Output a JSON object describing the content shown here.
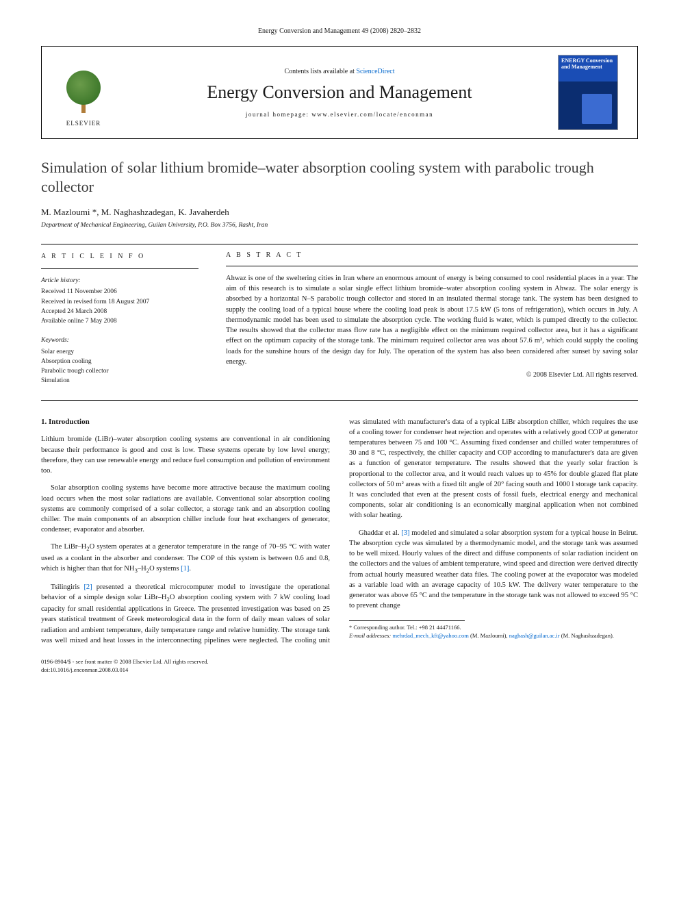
{
  "journal_ref": "Energy Conversion and Management 49 (2008) 2820–2832",
  "header": {
    "publisher": "ELSEVIER",
    "contents_prefix": "Contents lists available at ",
    "contents_link": "ScienceDirect",
    "journal_title": "Energy Conversion and Management",
    "homepage_prefix": "journal homepage: ",
    "homepage_url": "www.elsevier.com/locate/enconman",
    "cover_title": "ENERGY Conversion and Management"
  },
  "article": {
    "title": "Simulation of solar lithium bromide–water absorption cooling system with parabolic trough collector",
    "authors_html": "M. Mazloumi *, M. Naghashzadegan, K. Javaherdeh",
    "authors": [
      {
        "name": "M. Mazloumi",
        "corr": true
      },
      {
        "name": "M. Naghashzadegan",
        "corr": false
      },
      {
        "name": "K. Javaherdeh",
        "corr": false
      }
    ],
    "affiliation": "Department of Mechanical Engineering, Guilan University, P.O. Box 3756, Rasht, Iran"
  },
  "info": {
    "heading": "A R T I C L E   I N F O",
    "history_label": "Article history:",
    "history": [
      "Received 11 November 2006",
      "Received in revised form 18 August 2007",
      "Accepted 24 March 2008",
      "Available online 7 May 2008"
    ],
    "keywords_label": "Keywords:",
    "keywords": [
      "Solar energy",
      "Absorption cooling",
      "Parabolic trough collector",
      "Simulation"
    ]
  },
  "abstract": {
    "heading": "A B S T R A C T",
    "text": "Ahwaz is one of the sweltering cities in Iran where an enormous amount of energy is being consumed to cool residential places in a year. The aim of this research is to simulate a solar single effect lithium bromide–water absorption cooling system in Ahwaz. The solar energy is absorbed by a horizontal N–S parabolic trough collector and stored in an insulated thermal storage tank. The system has been designed to supply the cooling load of a typical house where the cooling load peak is about 17.5 kW (5 tons of refrigeration), which occurs in July. A thermodynamic model has been used to simulate the absorption cycle. The working fluid is water, which is pumped directly to the collector. The results showed that the collector mass flow rate has a negligible effect on the minimum required collector area, but it has a significant effect on the optimum capacity of the storage tank. The minimum required collector area was about 57.6 m², which could supply the cooling loads for the sunshine hours of the design day for July. The operation of the system has also been considered after sunset by saving solar energy.",
    "copyright": "© 2008 Elsevier Ltd. All rights reserved."
  },
  "body": {
    "section_heading": "1. Introduction",
    "paragraphs": [
      "Lithium bromide (LiBr)–water absorption cooling systems are conventional in air conditioning because their performance is good and cost is low. These systems operate by low level energy; therefore, they can use renewable energy and reduce fuel consumption and pollution of environment too.",
      "Solar absorption cooling systems have become more attractive because the maximum cooling load occurs when the most solar radiations are available. Conventional solar absorption cooling systems are commonly comprised of a solar collector, a storage tank and an absorption cooling chiller. The main components of an absorption chiller include four heat exchangers of generator, condenser, evaporator and absorber.",
      "The LiBr–H₂O system operates at a generator temperature in the range of 70–95 °C with water used as a coolant in the absorber and condenser. The COP of this system is between 0.6 and 0.8, which is higher than that for NH₃–H₂O systems [1].",
      "Tsilingiris [2] presented a theoretical microcomputer model to investigate the operational behavior of a simple design solar LiBr–H₂O absorption cooling system with 7 kW cooling load capacity for small residential applications in Greece. The presented investigation was based on 25 years statistical treatment of Greek meteorological data in the form of daily mean values of solar radiation and ambient temperature, daily temperature range and relative humidity. The storage tank was well mixed and heat losses in the interconnecting pipelines were neglected. The cooling unit was simulated with manufacturer's data of a typical LiBr absorption chiller, which requires the use of a cooling tower for condenser heat rejection and operates with a relatively good COP at generator temperatures between 75 and 100 °C. Assuming fixed condenser and chilled water temperatures of 30 and 8 °C, respectively, the chiller capacity and COP according to manufacturer's data are given as a function of generator temperature. The results showed that the yearly solar fraction is proportional to the collector area, and it would reach values up to 45% for double glazed flat plate collectors of 50 m² areas with a fixed tilt angle of 20° facing south and 1000 l storage tank capacity. It was concluded that even at the present costs of fossil fuels, electrical energy and mechanical components, solar air conditioning is an economically marginal application when not combined with solar heating.",
      "Ghaddar et al. [3] modeled and simulated a solar absorption system for a typical house in Beirut. The absorption cycle was simulated by a thermodynamic model, and the storage tank was assumed to be well mixed. Hourly values of the direct and diffuse components of solar radiation incident on the collectors and the values of ambient temperature, wind speed and direction were derived directly from actual hourly measured weather data files. The cooling power at the evaporator was modeled as a variable load with an average capacity of 10.5 kW. The delivery water temperature to the generator was above 65 °C and the temperature in the storage tank was not allowed to exceed 95 °C to prevent change"
    ],
    "refs": {
      "r1": "[1]",
      "r2": "[2]",
      "r3": "[3]"
    }
  },
  "footnotes": {
    "corr": "* Corresponding author. Tel.: +98 21 44471166.",
    "email_label": "E-mail addresses:",
    "emails": [
      {
        "addr": "mehrdad_mech_kft@yahoo.com",
        "who": "(M. Mazloumi)"
      },
      {
        "addr": "naghash@guilan.ac.ir",
        "who": "(M. Naghashzadegan)"
      }
    ]
  },
  "footer": {
    "line1": "0196-8904/$ - see front matter © 2008 Elsevier Ltd. All rights reserved.",
    "line2": "doi:10.1016/j.enconman.2008.03.014"
  },
  "colors": {
    "link": "#0066cc",
    "text": "#1a1a1a",
    "cover_top": "#1a4db5",
    "cover_bottom": "#0b2d70"
  },
  "typography": {
    "title_fontsize_pt": 22,
    "body_fontsize_pt": 10.5,
    "abstract_fontsize_pt": 10.5,
    "meta_fontsize_pt": 9.5,
    "font_family": "Georgia, Times New Roman, serif"
  }
}
